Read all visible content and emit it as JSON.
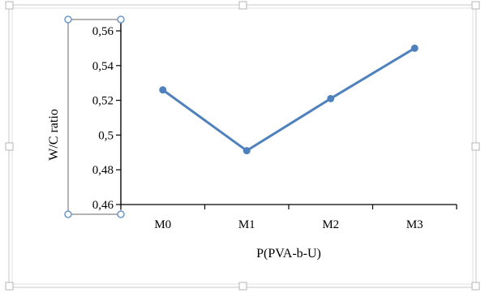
{
  "chart_data": {
    "type": "line",
    "categories": [
      "M0",
      "M1",
      "M2",
      "M3"
    ],
    "series": [
      {
        "values": [
          0.526,
          0.491,
          0.521,
          0.55
        ]
      }
    ],
    "xlabel": "P(PVA-b-U)",
    "ylabel": "W/C ratio",
    "ylim": [
      0.46,
      0.56
    ],
    "yticks": [
      0.46,
      0.48,
      0.5,
      0.52,
      0.54,
      0.56
    ],
    "ytick_labels": [
      "0,46",
      "0,48",
      "0,5",
      "0,52",
      "0,54",
      "0,56"
    ],
    "grid": false,
    "legend": "none",
    "series_color": "#4f81bd",
    "axis_color": "#000000",
    "selection_color": "#6f97c6",
    "frame_color": "#c9c9c9"
  }
}
